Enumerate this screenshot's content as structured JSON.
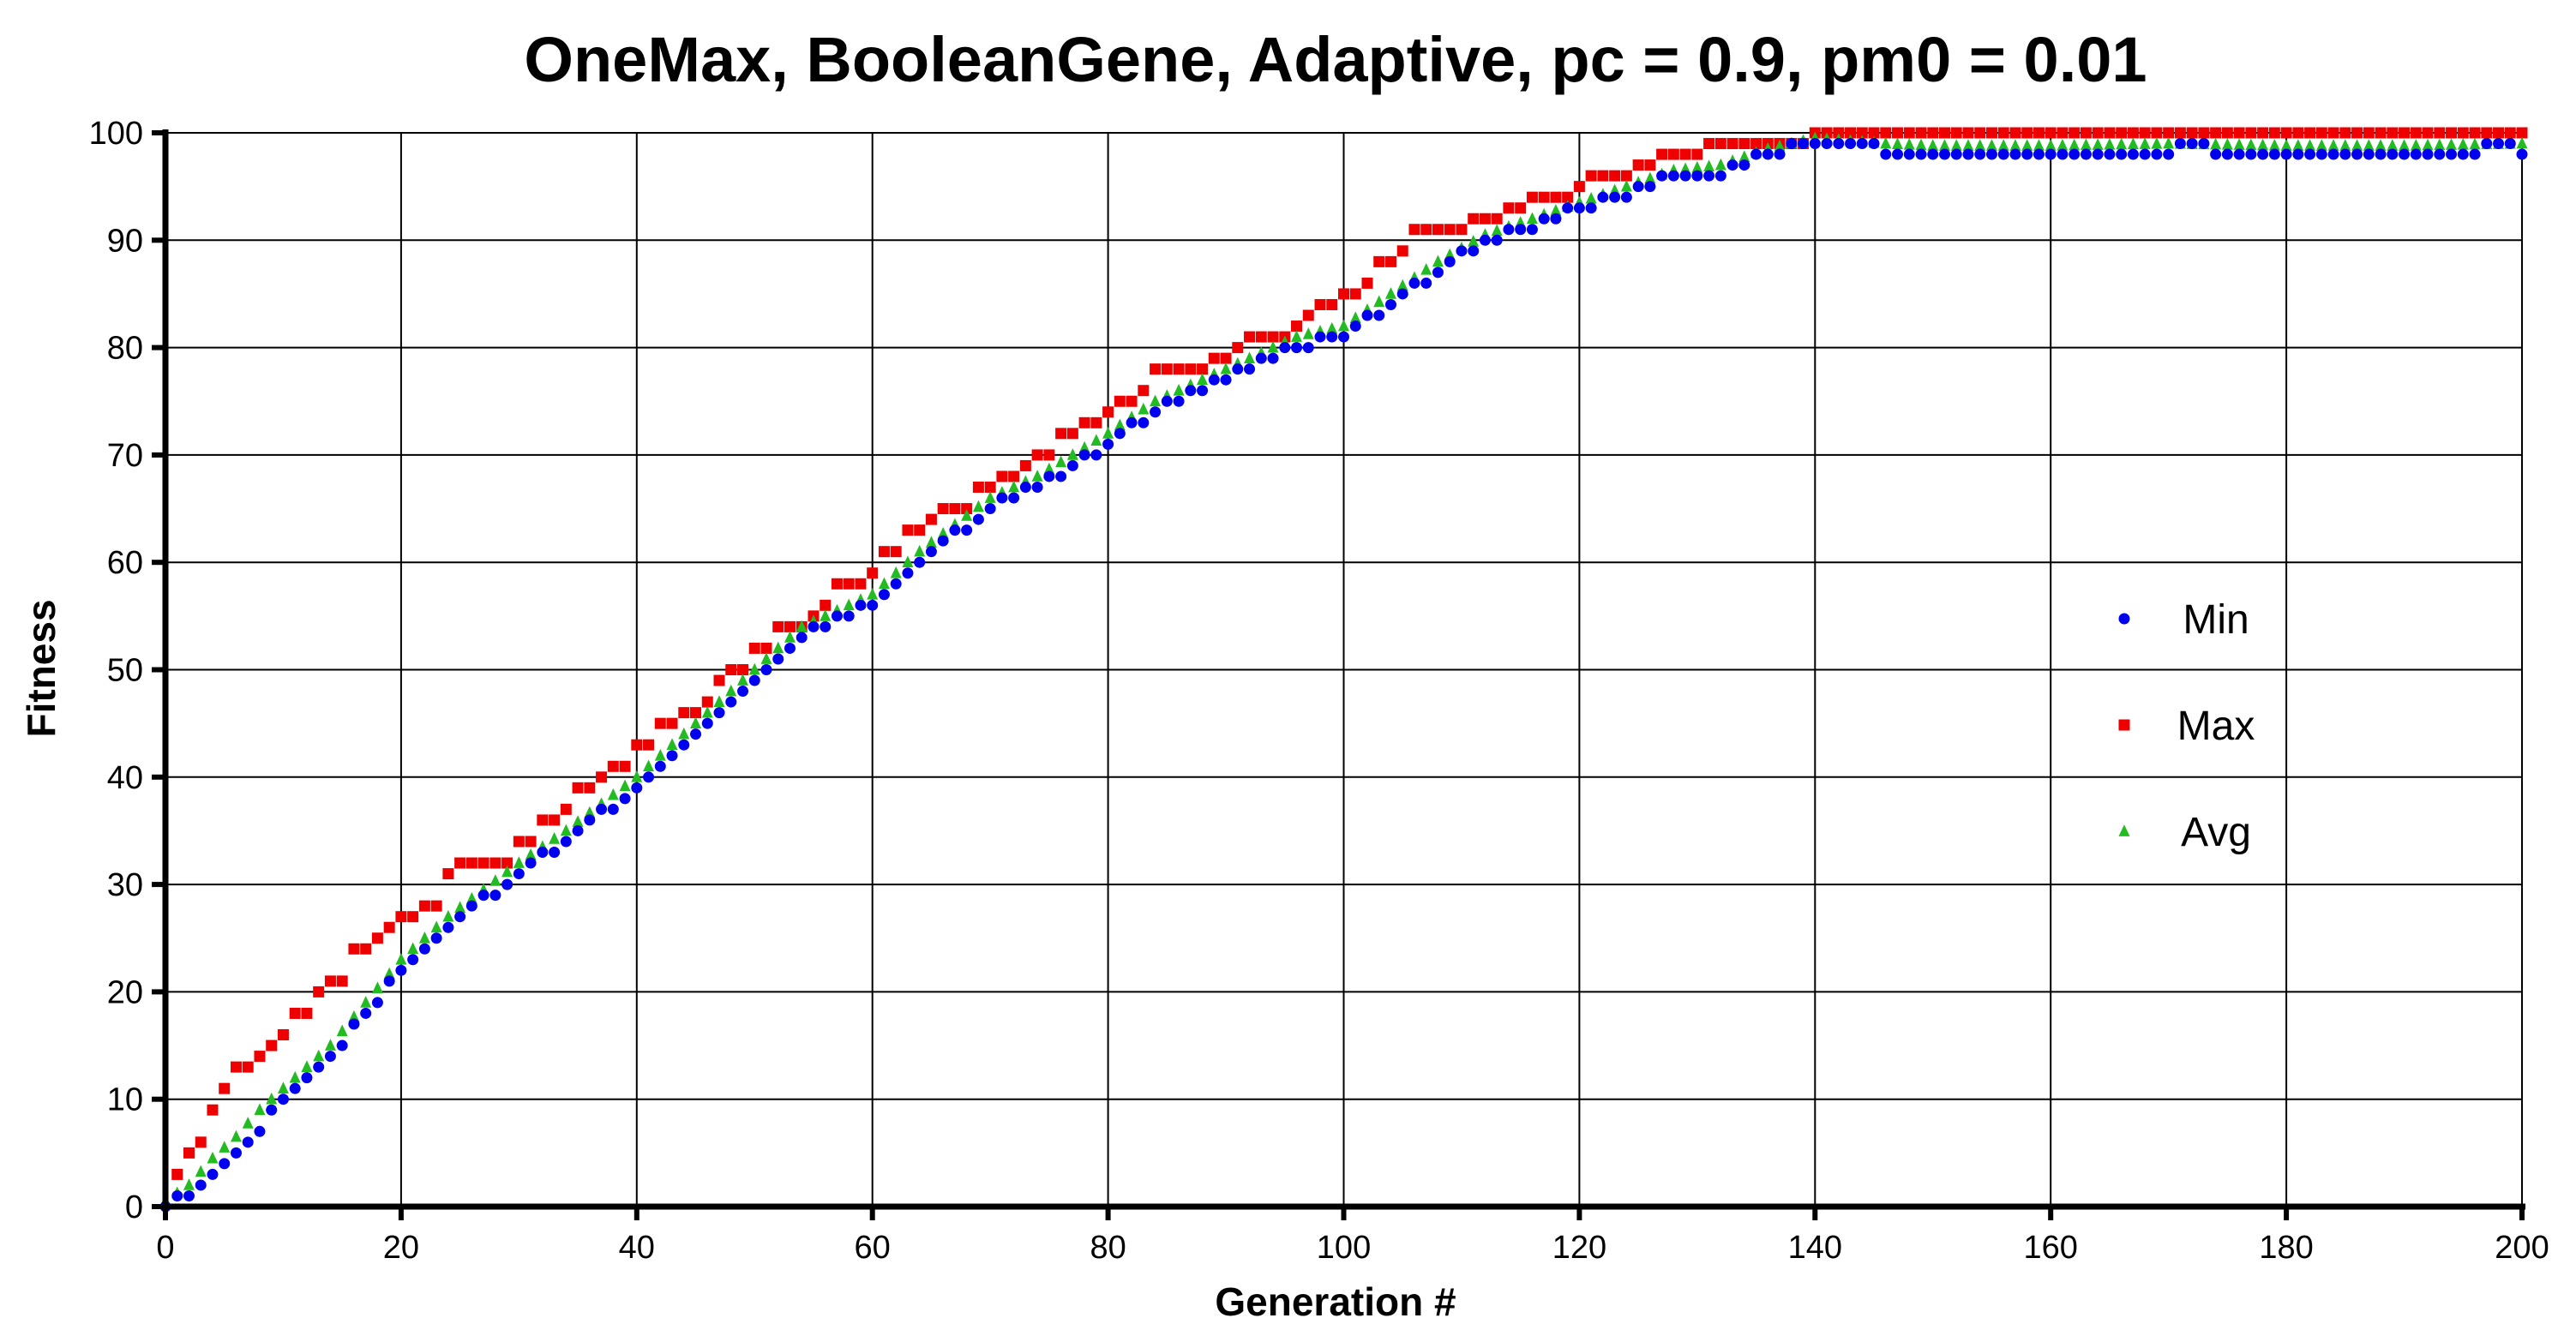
{
  "chart_data": {
    "type": "scatter",
    "title": "OneMax, BooleanGene, Adaptive, pc = 0.9, pm0 = 0.01",
    "xlabel": "Generation #",
    "ylabel": "Fitness",
    "xlim": [
      0,
      200
    ],
    "ylim": [
      0,
      100
    ],
    "xticks": [
      0,
      20,
      40,
      60,
      80,
      100,
      120,
      140,
      160,
      180,
      200
    ],
    "yticks": [
      0,
      10,
      20,
      30,
      40,
      50,
      60,
      70,
      80,
      90,
      100
    ],
    "grid": true,
    "legend_position": "right",
    "series": [
      {
        "name": "Min",
        "color": "#0000ee",
        "marker": "circle",
        "points": [
          [
            0,
            0
          ],
          [
            2,
            1
          ],
          [
            4,
            3
          ],
          [
            6,
            5
          ],
          [
            8,
            7
          ],
          [
            10,
            10
          ],
          [
            14,
            14
          ],
          [
            20,
            22
          ],
          [
            24,
            26
          ],
          [
            30,
            31
          ],
          [
            34,
            34
          ],
          [
            40,
            39
          ],
          [
            44,
            43
          ],
          [
            50,
            49
          ],
          [
            54,
            53
          ],
          [
            60,
            56
          ],
          [
            64,
            60
          ],
          [
            70,
            65
          ],
          [
            74,
            67
          ],
          [
            80,
            71
          ],
          [
            84,
            74
          ],
          [
            90,
            77
          ],
          [
            94,
            79
          ],
          [
            96,
            80
          ],
          [
            100,
            81
          ],
          [
            104,
            84
          ],
          [
            108,
            87
          ],
          [
            112,
            90
          ],
          [
            116,
            91
          ],
          [
            120,
            93
          ],
          [
            124,
            94
          ],
          [
            128,
            96
          ],
          [
            132,
            96
          ],
          [
            136,
            98
          ],
          [
            140,
            99
          ],
          [
            144,
            99
          ],
          [
            146,
            98
          ],
          [
            150,
            98
          ],
          [
            160,
            98
          ],
          [
            170,
            98
          ],
          [
            172,
            99
          ],
          [
            174,
            98
          ],
          [
            180,
            98
          ],
          [
            190,
            98
          ],
          [
            196,
            98
          ],
          [
            197,
            99
          ],
          [
            199,
            99
          ],
          [
            200,
            98
          ]
        ]
      },
      {
        "name": "Max",
        "color": "#ee0000",
        "marker": "square",
        "points": [
          [
            1,
            3
          ],
          [
            2,
            5
          ],
          [
            3,
            6
          ],
          [
            4,
            9
          ],
          [
            5,
            11
          ],
          [
            6,
            13
          ],
          [
            8,
            14
          ],
          [
            9,
            15
          ],
          [
            10,
            16
          ],
          [
            11,
            18
          ],
          [
            13,
            20
          ],
          [
            14,
            21
          ],
          [
            16,
            24
          ],
          [
            18,
            25
          ],
          [
            19,
            26
          ],
          [
            20,
            27
          ],
          [
            22,
            28
          ],
          [
            24,
            31
          ],
          [
            25,
            32
          ],
          [
            28,
            32
          ],
          [
            30,
            34
          ],
          [
            32,
            36
          ],
          [
            34,
            37
          ],
          [
            35,
            39
          ],
          [
            37,
            40
          ],
          [
            38,
            41
          ],
          [
            40,
            43
          ],
          [
            42,
            45
          ],
          [
            44,
            46
          ],
          [
            46,
            47
          ],
          [
            47,
            49
          ],
          [
            48,
            50
          ],
          [
            50,
            52
          ],
          [
            52,
            54
          ],
          [
            54,
            54
          ],
          [
            55,
            55
          ],
          [
            56,
            56
          ],
          [
            57,
            58
          ],
          [
            60,
            59
          ],
          [
            61,
            61
          ],
          [
            63,
            63
          ],
          [
            65,
            64
          ],
          [
            66,
            65
          ],
          [
            68,
            65
          ],
          [
            69,
            67
          ],
          [
            71,
            68
          ],
          [
            72,
            68
          ],
          [
            73,
            69
          ],
          [
            74,
            70
          ],
          [
            76,
            72
          ],
          [
            78,
            73
          ],
          [
            80,
            74
          ],
          [
            81,
            75
          ],
          [
            83,
            76
          ],
          [
            84,
            78
          ],
          [
            88,
            78
          ],
          [
            89,
            79
          ],
          [
            91,
            80
          ],
          [
            92,
            81
          ],
          [
            95,
            81
          ],
          [
            96,
            82
          ],
          [
            97,
            83
          ],
          [
            98,
            84
          ],
          [
            100,
            85
          ],
          [
            101,
            85
          ],
          [
            102,
            86
          ],
          [
            103,
            88
          ],
          [
            104,
            88
          ],
          [
            105,
            89
          ],
          [
            106,
            91
          ],
          [
            110,
            91
          ],
          [
            111,
            92
          ],
          [
            113,
            92
          ],
          [
            114,
            93
          ],
          [
            116,
            94
          ],
          [
            119,
            94
          ],
          [
            120,
            95
          ],
          [
            121,
            96
          ],
          [
            124,
            96
          ],
          [
            125,
            97
          ],
          [
            127,
            98
          ],
          [
            130,
            98
          ],
          [
            131,
            99
          ],
          [
            136,
            99
          ],
          [
            140,
            100
          ],
          [
            200,
            100
          ]
        ]
      },
      {
        "name": "Avg",
        "color": "#22bb22",
        "marker": "triangle",
        "points": [
          [
            0,
            0.5
          ],
          [
            2,
            2
          ],
          [
            4,
            4.5
          ],
          [
            6,
            6.5
          ],
          [
            8,
            9
          ],
          [
            10,
            11
          ],
          [
            14,
            15
          ],
          [
            20,
            23
          ],
          [
            24,
            27
          ],
          [
            30,
            32
          ],
          [
            34,
            35
          ],
          [
            40,
            40
          ],
          [
            44,
            44
          ],
          [
            50,
            50
          ],
          [
            54,
            54
          ],
          [
            60,
            57
          ],
          [
            64,
            61
          ],
          [
            70,
            66
          ],
          [
            74,
            68
          ],
          [
            80,
            72
          ],
          [
            84,
            75
          ],
          [
            90,
            78
          ],
          [
            94,
            80
          ],
          [
            96,
            81
          ],
          [
            100,
            82
          ],
          [
            104,
            85
          ],
          [
            108,
            88
          ],
          [
            112,
            90.5
          ],
          [
            116,
            92
          ],
          [
            120,
            93.5
          ],
          [
            124,
            95
          ],
          [
            128,
            96.5
          ],
          [
            132,
            97
          ],
          [
            136,
            98.5
          ],
          [
            140,
            99.5
          ],
          [
            146,
            99
          ],
          [
            150,
            98.8
          ],
          [
            160,
            98.8
          ],
          [
            170,
            99
          ],
          [
            180,
            98.8
          ],
          [
            190,
            98.8
          ],
          [
            200,
            99
          ]
        ]
      }
    ]
  }
}
